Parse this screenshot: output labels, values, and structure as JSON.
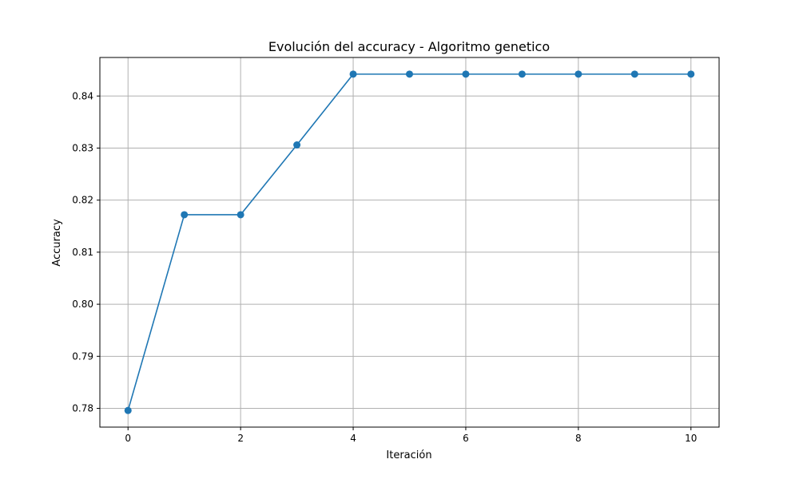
{
  "chart_data": {
    "type": "line",
    "title": "Evolución del accuracy - Algoritmo genetico",
    "xlabel": "Iteración",
    "ylabel": "Accuracy",
    "x": [
      0,
      1,
      2,
      3,
      4,
      5,
      6,
      7,
      8,
      9,
      10
    ],
    "series": [
      {
        "values": [
          0.7796,
          0.8172,
          0.8172,
          0.8306,
          0.8442,
          0.8442,
          0.8442,
          0.8442,
          0.8442,
          0.8442,
          0.8442
        ],
        "color": "#1f77b4",
        "marker": "circle"
      }
    ],
    "xticks": [
      "0",
      "2",
      "4",
      "6",
      "8",
      "10"
    ],
    "yticks": [
      "0.78",
      "0.79",
      "0.80",
      "0.81",
      "0.82",
      "0.83",
      "0.84"
    ],
    "xlim": [
      -0.5,
      10.5
    ],
    "ylim": [
      0.7764,
      0.8474
    ],
    "grid": true,
    "grid_color": "#b0b0b0"
  }
}
